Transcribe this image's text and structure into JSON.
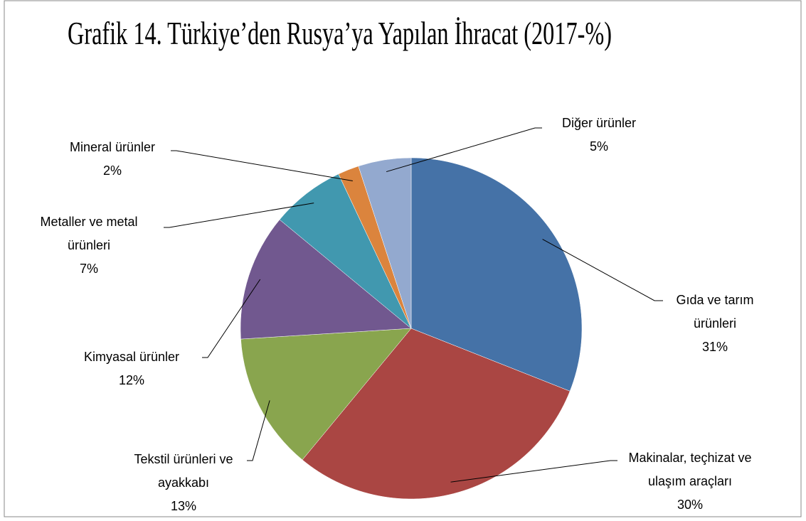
{
  "chart_data": {
    "type": "pie",
    "title": "Grafik 14. Türkiye’den Rusya’ya Yapılan İhracat (2017-%)",
    "categories": [
      "Gıda ve tarım ürünleri",
      "Makinalar, teçhizat ve ulaşım araçları",
      "Tekstil ürünleri ve ayakkabı",
      "Kimyasal ürünler",
      "Metaller ve metal ürünleri",
      "Mineral ürünler",
      "Diğer ürünler"
    ],
    "values": [
      31,
      30,
      13,
      12,
      7,
      2,
      5
    ],
    "value_labels": [
      "31%",
      "30%",
      "13%",
      "12%",
      "7%",
      "2%",
      "5%"
    ],
    "colors": [
      "#4572a7",
      "#aa4643",
      "#89a54e",
      "#71588f",
      "#4198af",
      "#db843d",
      "#93a9cf"
    ]
  }
}
